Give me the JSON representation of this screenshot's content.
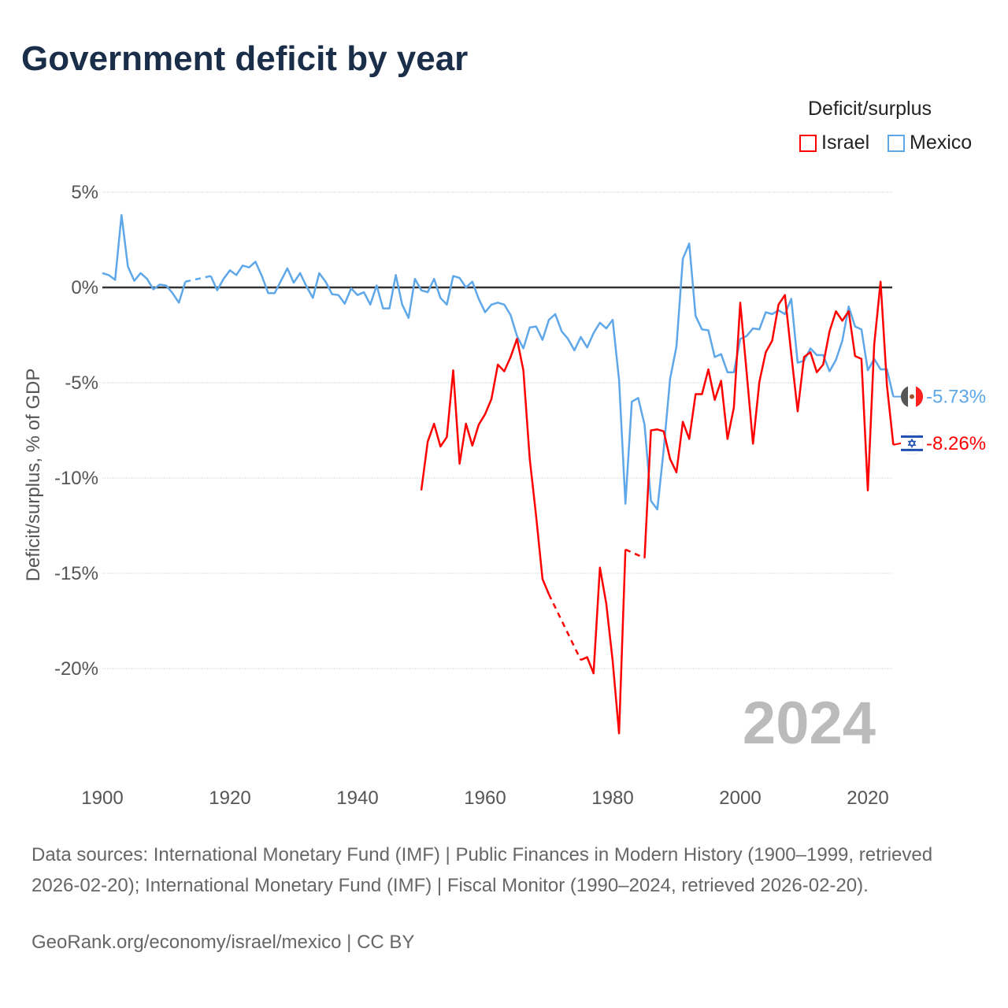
{
  "title": "Government deficit by year",
  "legend": {
    "title": "Deficit/surplus",
    "items": [
      {
        "name": "Israel",
        "color": "#ff0000"
      },
      {
        "name": "Mexico",
        "color": "#5ea7e8"
      }
    ]
  },
  "footer": {
    "sources": "Data sources: International Monetary Fund (IMF) | Public Finances in Modern History (1900–1999, retrieved 2026-02-20); International Monetary Fund (IMF) | Fiscal Monitor (1990–2024, retrieved 2026-02-20).",
    "credit": "GeoRank.org/economy/israel/mexico | CC BY"
  },
  "chart_data": {
    "type": "line",
    "title": "Government deficit by year",
    "xlabel": "",
    "ylabel": "Deficit/surplus, % of GDP",
    "xlim": [
      1900,
      2024
    ],
    "ylim": [
      -25,
      5
    ],
    "x_ticks": [
      1900,
      1920,
      1940,
      1960,
      1980,
      2000,
      2020
    ],
    "y_ticks": [
      {
        "v": 5,
        "label": "5%"
      },
      {
        "v": 0,
        "label": "0%"
      },
      {
        "v": -5,
        "label": "-5%"
      },
      {
        "v": -10,
        "label": "-10%"
      },
      {
        "v": -15,
        "label": "-15%"
      },
      {
        "v": -20,
        "label": "-20%"
      }
    ],
    "current_year": "2024",
    "grid": true,
    "legend_position": "top-right",
    "series": [
      {
        "name": "Mexico",
        "color": "#5ea7e8",
        "end_label": "-5.73%",
        "start_year": 1900,
        "values": [
          0.75,
          0.65,
          0.4,
          3.8,
          1.1,
          0.35,
          0.75,
          0.45,
          -0.1,
          0.15,
          0.1,
          -0.3,
          -0.8,
          0.3,
          null,
          null,
          null,
          0.6,
          -0.15,
          0.45,
          0.9,
          0.65,
          1.15,
          1.05,
          1.35,
          0.6,
          -0.3,
          -0.3,
          0.35,
          1.0,
          0.25,
          0.75,
          0.05,
          -0.55,
          0.75,
          0.3,
          -0.35,
          -0.4,
          -0.85,
          -0.05,
          -0.4,
          -0.25,
          -0.9,
          0.1,
          -1.1,
          -1.1,
          0.65,
          -0.9,
          -1.6,
          0.45,
          -0.15,
          -0.25,
          0.45,
          -0.55,
          -0.9,
          0.6,
          0.5,
          0.0,
          0.3,
          -0.6,
          -1.3,
          -0.9,
          -0.8,
          -0.9,
          -1.45,
          -2.55,
          -3.2,
          -2.1,
          -2.05,
          -2.75,
          -1.7,
          -1.4,
          -2.3,
          -2.7,
          -3.3,
          -2.6,
          -3.15,
          -2.4,
          -1.85,
          -2.15,
          -1.7,
          -4.85,
          -11.35,
          -6.0,
          -5.8,
          -7.2,
          -11.2,
          -11.65,
          -8.5,
          -4.8,
          -3.1,
          1.5,
          2.3,
          -1.5,
          -2.2,
          -2.25,
          -3.65,
          -3.5,
          -4.45,
          -4.45,
          -2.7,
          -2.55,
          -2.15,
          -2.2,
          -1.3,
          -1.4,
          -1.2,
          -1.4,
          -0.6,
          -3.95,
          -3.85,
          -3.2,
          -3.55,
          -3.55,
          -4.4,
          -3.8,
          -2.8,
          -1.0,
          -2.05,
          -2.2,
          -4.35,
          -3.75,
          -4.3,
          -4.3,
          -5.73
        ]
      },
      {
        "name": "Israel",
        "color": "#ff0000",
        "end_label": "-8.26%",
        "start_year": 1950,
        "values": [
          -10.65,
          -8.1,
          -7.15,
          -8.35,
          -7.85,
          -4.35,
          -9.25,
          -7.15,
          -8.3,
          -7.2,
          -6.65,
          -5.85,
          -4.05,
          -4.4,
          -3.65,
          -2.7,
          -4.35,
          -9.0,
          -12.0,
          -15.3,
          -16.1,
          null,
          null,
          null,
          null,
          -19.55,
          -19.4,
          -20.25,
          -14.7,
          -16.6,
          -19.6,
          -23.4,
          -13.75,
          null,
          null,
          -14.2,
          -7.5,
          -7.45,
          -7.55,
          -9.0,
          -9.7,
          -7.05,
          -7.95,
          -5.6,
          -5.6,
          -4.3,
          -5.9,
          -4.9,
          -7.95,
          -6.3,
          -0.8,
          -4.45,
          -8.2,
          -4.95,
          -3.4,
          -2.8,
          -0.9,
          -0.4,
          -3.5,
          -6.5,
          -3.65,
          -3.4,
          -4.45,
          -4.05,
          -2.3,
          -1.25,
          -1.75,
          -1.25,
          -3.6,
          -3.75,
          -10.65,
          -3.0,
          0.3,
          -5.15,
          -8.26
        ]
      }
    ]
  }
}
